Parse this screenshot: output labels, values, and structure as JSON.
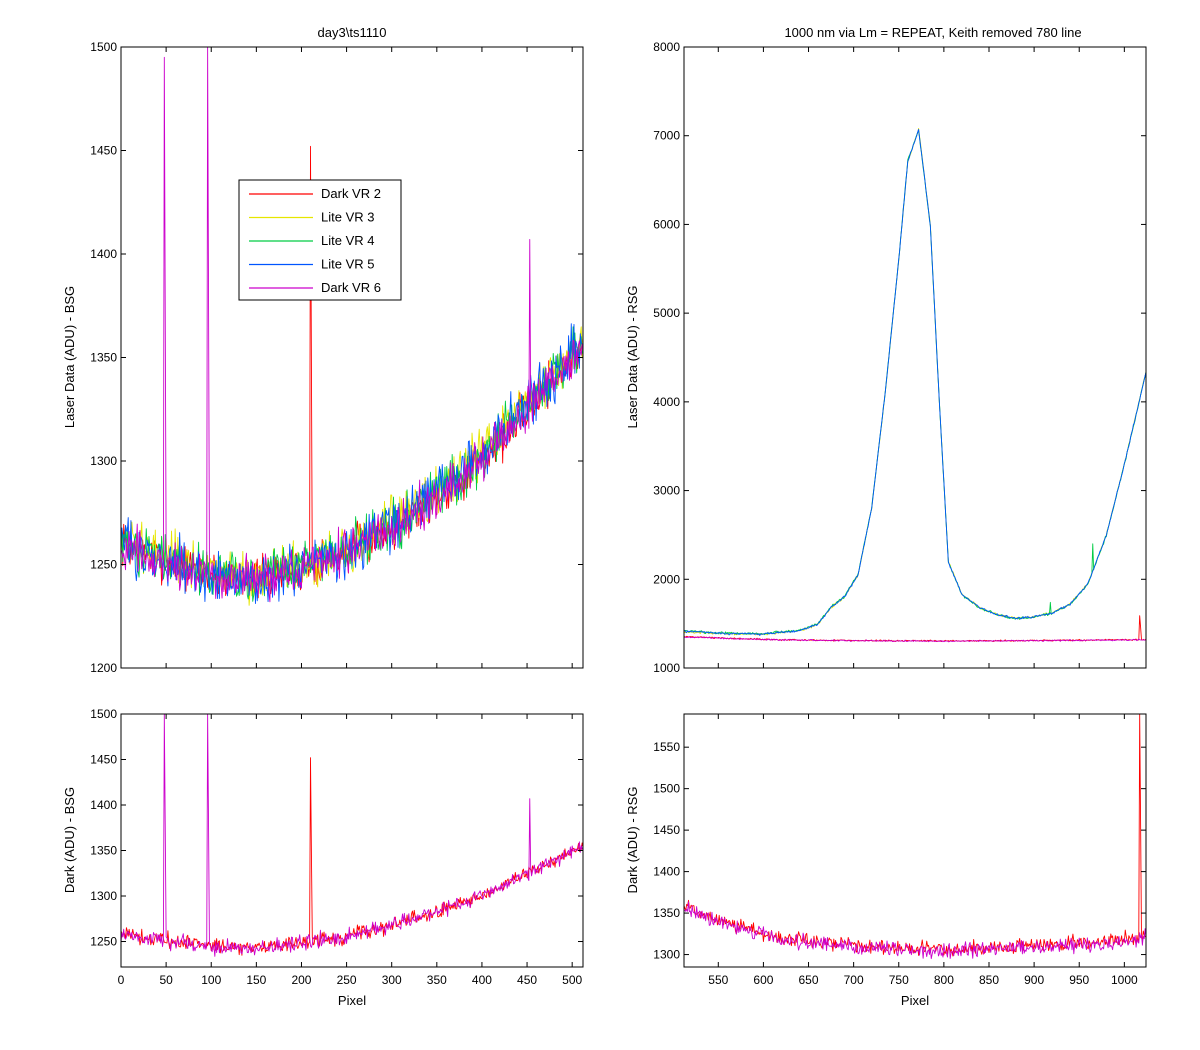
{
  "figure": {
    "background": "#ffffff",
    "series_colors": {
      "Dark VR 2": "#ff0000",
      "Lite VR 3": "#e6e600",
      "Lite VR 4": "#00cc44",
      "Lite VR 5": "#0055ff",
      "Dark VR 6": "#cc00cc"
    }
  },
  "chart_data": [
    {
      "id": "top-left",
      "type": "line",
      "title": "day3\\ts1110",
      "xlabel": "",
      "ylabel": "Laser Data (ADU) - BSG",
      "xlim": [
        0,
        512
      ],
      "ylim": [
        1200,
        1500
      ],
      "xticks": [
        0,
        50,
        100,
        150,
        200,
        250,
        300,
        350,
        400,
        450,
        500
      ],
      "show_xticklabels": false,
      "yticks": [
        1200,
        1250,
        1300,
        1350,
        1400,
        1450,
        1500
      ],
      "legend": {
        "placement": "upper-center",
        "entries": [
          "Dark VR 2",
          "Lite VR 3",
          "Lite VR 4",
          "Lite VR 5",
          "Dark VR 6"
        ]
      },
      "series": [
        {
          "name": "Dark VR 2",
          "color": "#ff0000",
          "x": [
            0,
            50,
            100,
            150,
            200,
            250,
            300,
            350,
            400,
            450,
            512
          ],
          "values": [
            1260,
            1252,
            1245,
            1243,
            1248,
            1256,
            1268,
            1283,
            1300,
            1325,
            1356
          ],
          "noise": 10,
          "spikes": [
            [
              210,
              1452
            ],
            [
              211,
              1350
            ]
          ]
        },
        {
          "name": "Lite VR 3",
          "color": "#e6e600",
          "x": [
            0,
            50,
            100,
            150,
            200,
            250,
            300,
            350,
            400,
            450,
            512
          ],
          "values": [
            1262,
            1253,
            1246,
            1244,
            1250,
            1258,
            1270,
            1285,
            1303,
            1328,
            1358
          ],
          "noise": 12,
          "spikes": []
        },
        {
          "name": "Lite VR 4",
          "color": "#00cc44",
          "x": [
            0,
            50,
            100,
            150,
            200,
            250,
            300,
            350,
            400,
            450,
            512
          ],
          "values": [
            1261,
            1252,
            1245,
            1243,
            1249,
            1257,
            1269,
            1284,
            1302,
            1327,
            1357
          ],
          "noise": 12,
          "spikes": []
        },
        {
          "name": "Lite VR 5",
          "color": "#0055ff",
          "x": [
            0,
            50,
            100,
            150,
            200,
            250,
            300,
            350,
            400,
            450,
            512
          ],
          "values": [
            1260,
            1251,
            1244,
            1242,
            1248,
            1257,
            1269,
            1285,
            1303,
            1328,
            1358
          ],
          "noise": 12,
          "spikes": []
        },
        {
          "name": "Dark VR 6",
          "color": "#cc00cc",
          "x": [
            0,
            50,
            100,
            150,
            200,
            250,
            300,
            350,
            400,
            450,
            512
          ],
          "values": [
            1259,
            1251,
            1244,
            1243,
            1248,
            1256,
            1268,
            1283,
            1300,
            1325,
            1355
          ],
          "noise": 10,
          "spikes": [
            [
              48,
              1495
            ],
            [
              49,
              1375
            ],
            [
              96,
              1500
            ],
            [
              97,
              1380
            ],
            [
              453,
              1407
            ]
          ]
        }
      ]
    },
    {
      "id": "top-right",
      "type": "line",
      "title": "1000 nm via Lm = REPEAT, Keith removed 780 line",
      "xlabel": "",
      "ylabel": "Laser Data (ADU) - RSG",
      "xlim": [
        512,
        1024
      ],
      "ylim": [
        1000,
        8000
      ],
      "xticks": [
        550,
        600,
        650,
        700,
        750,
        800,
        850,
        900,
        950,
        1000
      ],
      "show_xticklabels": false,
      "yticks": [
        1000,
        2000,
        3000,
        4000,
        5000,
        6000,
        7000,
        8000
      ],
      "series": [
        {
          "name": "Lite VR 3",
          "color": "#e6e600",
          "x": [
            512,
            550,
            600,
            640,
            660,
            675,
            690,
            705,
            720,
            735,
            750,
            760,
            772,
            785,
            795,
            805,
            820,
            840,
            860,
            880,
            900,
            920,
            940,
            960,
            980,
            1000,
            1015,
            1024
          ],
          "values": [
            1410,
            1390,
            1380,
            1420,
            1490,
            1680,
            1800,
            2050,
            2800,
            4100,
            5600,
            6700,
            7080,
            6000,
            4000,
            2200,
            1830,
            1680,
            1600,
            1560,
            1580,
            1620,
            1720,
            1960,
            2500,
            3300,
            3950,
            4340
          ],
          "noise": 12,
          "spikes": []
        },
        {
          "name": "Lite VR 4",
          "color": "#00cc44",
          "x": [
            512,
            550,
            600,
            640,
            660,
            675,
            690,
            705,
            720,
            735,
            750,
            760,
            772,
            785,
            795,
            805,
            820,
            840,
            860,
            880,
            900,
            920,
            940,
            960,
            980,
            1000,
            1015,
            1024
          ],
          "values": [
            1420,
            1395,
            1385,
            1425,
            1495,
            1690,
            1810,
            2060,
            2810,
            4110,
            5610,
            6720,
            7060,
            5980,
            3990,
            2190,
            1825,
            1675,
            1595,
            1555,
            1575,
            1615,
            1715,
            1955,
            2490,
            3290,
            3940,
            4330
          ],
          "noise": 14,
          "spikes": [
            [
              965,
              2400
            ],
            [
              918,
              1740
            ]
          ]
        },
        {
          "name": "Lite VR 5",
          "color": "#0055ff",
          "x": [
            512,
            550,
            600,
            640,
            660,
            675,
            690,
            705,
            720,
            735,
            750,
            760,
            772,
            785,
            795,
            805,
            820,
            840,
            860,
            880,
            900,
            920,
            940,
            960,
            980,
            1000,
            1015,
            1024
          ],
          "values": [
            1415,
            1392,
            1382,
            1422,
            1492,
            1685,
            1805,
            2055,
            2805,
            4105,
            5605,
            6710,
            7070,
            5990,
            3995,
            2195,
            1828,
            1678,
            1598,
            1558,
            1578,
            1618,
            1718,
            1958,
            2495,
            3295,
            3945,
            4335
          ],
          "noise": 12,
          "spikes": []
        },
        {
          "name": "Dark VR 2",
          "color": "#ff0000",
          "x": [
            512,
            560,
            620,
            700,
            800,
            900,
            1000,
            1024
          ],
          "values": [
            1355,
            1335,
            1318,
            1310,
            1305,
            1310,
            1318,
            1320
          ],
          "noise": 8,
          "spikes": [
            [
              1017,
              1590
            ],
            [
              1018,
              1460
            ]
          ]
        },
        {
          "name": "Dark VR 6",
          "color": "#cc00cc",
          "x": [
            512,
            560,
            620,
            700,
            800,
            900,
            1000,
            1024
          ],
          "values": [
            1350,
            1332,
            1316,
            1308,
            1303,
            1308,
            1316,
            1318
          ],
          "noise": 8,
          "spikes": []
        }
      ]
    },
    {
      "id": "bottom-left",
      "type": "line",
      "title": "",
      "xlabel": "Pixel",
      "ylabel": "Dark (ADU) - BSG",
      "xlim": [
        0,
        512
      ],
      "ylim": [
        1222,
        1500
      ],
      "xticks": [
        0,
        50,
        100,
        150,
        200,
        250,
        300,
        350,
        400,
        450,
        500
      ],
      "show_xticklabels": true,
      "yticks": [
        1250,
        1300,
        1350,
        1400,
        1450,
        1500
      ],
      "series": [
        {
          "name": "Dark VR 2",
          "color": "#ff0000",
          "x": [
            0,
            50,
            100,
            150,
            200,
            250,
            300,
            350,
            400,
            450,
            512
          ],
          "values": [
            1260,
            1252,
            1245,
            1243,
            1248,
            1256,
            1268,
            1283,
            1300,
            1325,
            1356
          ],
          "noise": 8,
          "spikes": [
            [
              210,
              1452
            ],
            [
              211,
              1350
            ]
          ]
        },
        {
          "name": "Dark VR 6",
          "color": "#cc00cc",
          "x": [
            0,
            50,
            100,
            150,
            200,
            250,
            300,
            350,
            400,
            450,
            512
          ],
          "values": [
            1259,
            1251,
            1244,
            1243,
            1248,
            1256,
            1268,
            1283,
            1300,
            1325,
            1355
          ],
          "noise": 8,
          "spikes": [
            [
              48,
              1500
            ],
            [
              49,
              1380
            ],
            [
              96,
              1500
            ],
            [
              97,
              1380
            ],
            [
              453,
              1407
            ]
          ]
        }
      ]
    },
    {
      "id": "bottom-right",
      "type": "line",
      "title": "",
      "xlabel": "Pixel",
      "ylabel": "Dark (ADU) - RSG",
      "xlim": [
        512,
        1024
      ],
      "ylim": [
        1285,
        1590
      ],
      "xticks": [
        550,
        600,
        650,
        700,
        750,
        800,
        850,
        900,
        950,
        1000
      ],
      "show_xticklabels": true,
      "yticks": [
        1300,
        1350,
        1400,
        1450,
        1500,
        1550
      ],
      "series": [
        {
          "name": "Dark VR 2",
          "color": "#ff0000",
          "x": [
            512,
            560,
            620,
            700,
            800,
            900,
            1000,
            1024
          ],
          "values": [
            1358,
            1338,
            1320,
            1311,
            1306,
            1310,
            1318,
            1322
          ],
          "noise": 9,
          "spikes": [
            [
              1017,
              1590
            ],
            [
              1018,
              1460
            ]
          ]
        },
        {
          "name": "Dark VR 6",
          "color": "#cc00cc",
          "x": [
            512,
            560,
            620,
            700,
            800,
            900,
            1000,
            1024
          ],
          "values": [
            1355,
            1336,
            1318,
            1309,
            1304,
            1308,
            1316,
            1320
          ],
          "noise": 9,
          "spikes": []
        }
      ]
    }
  ]
}
